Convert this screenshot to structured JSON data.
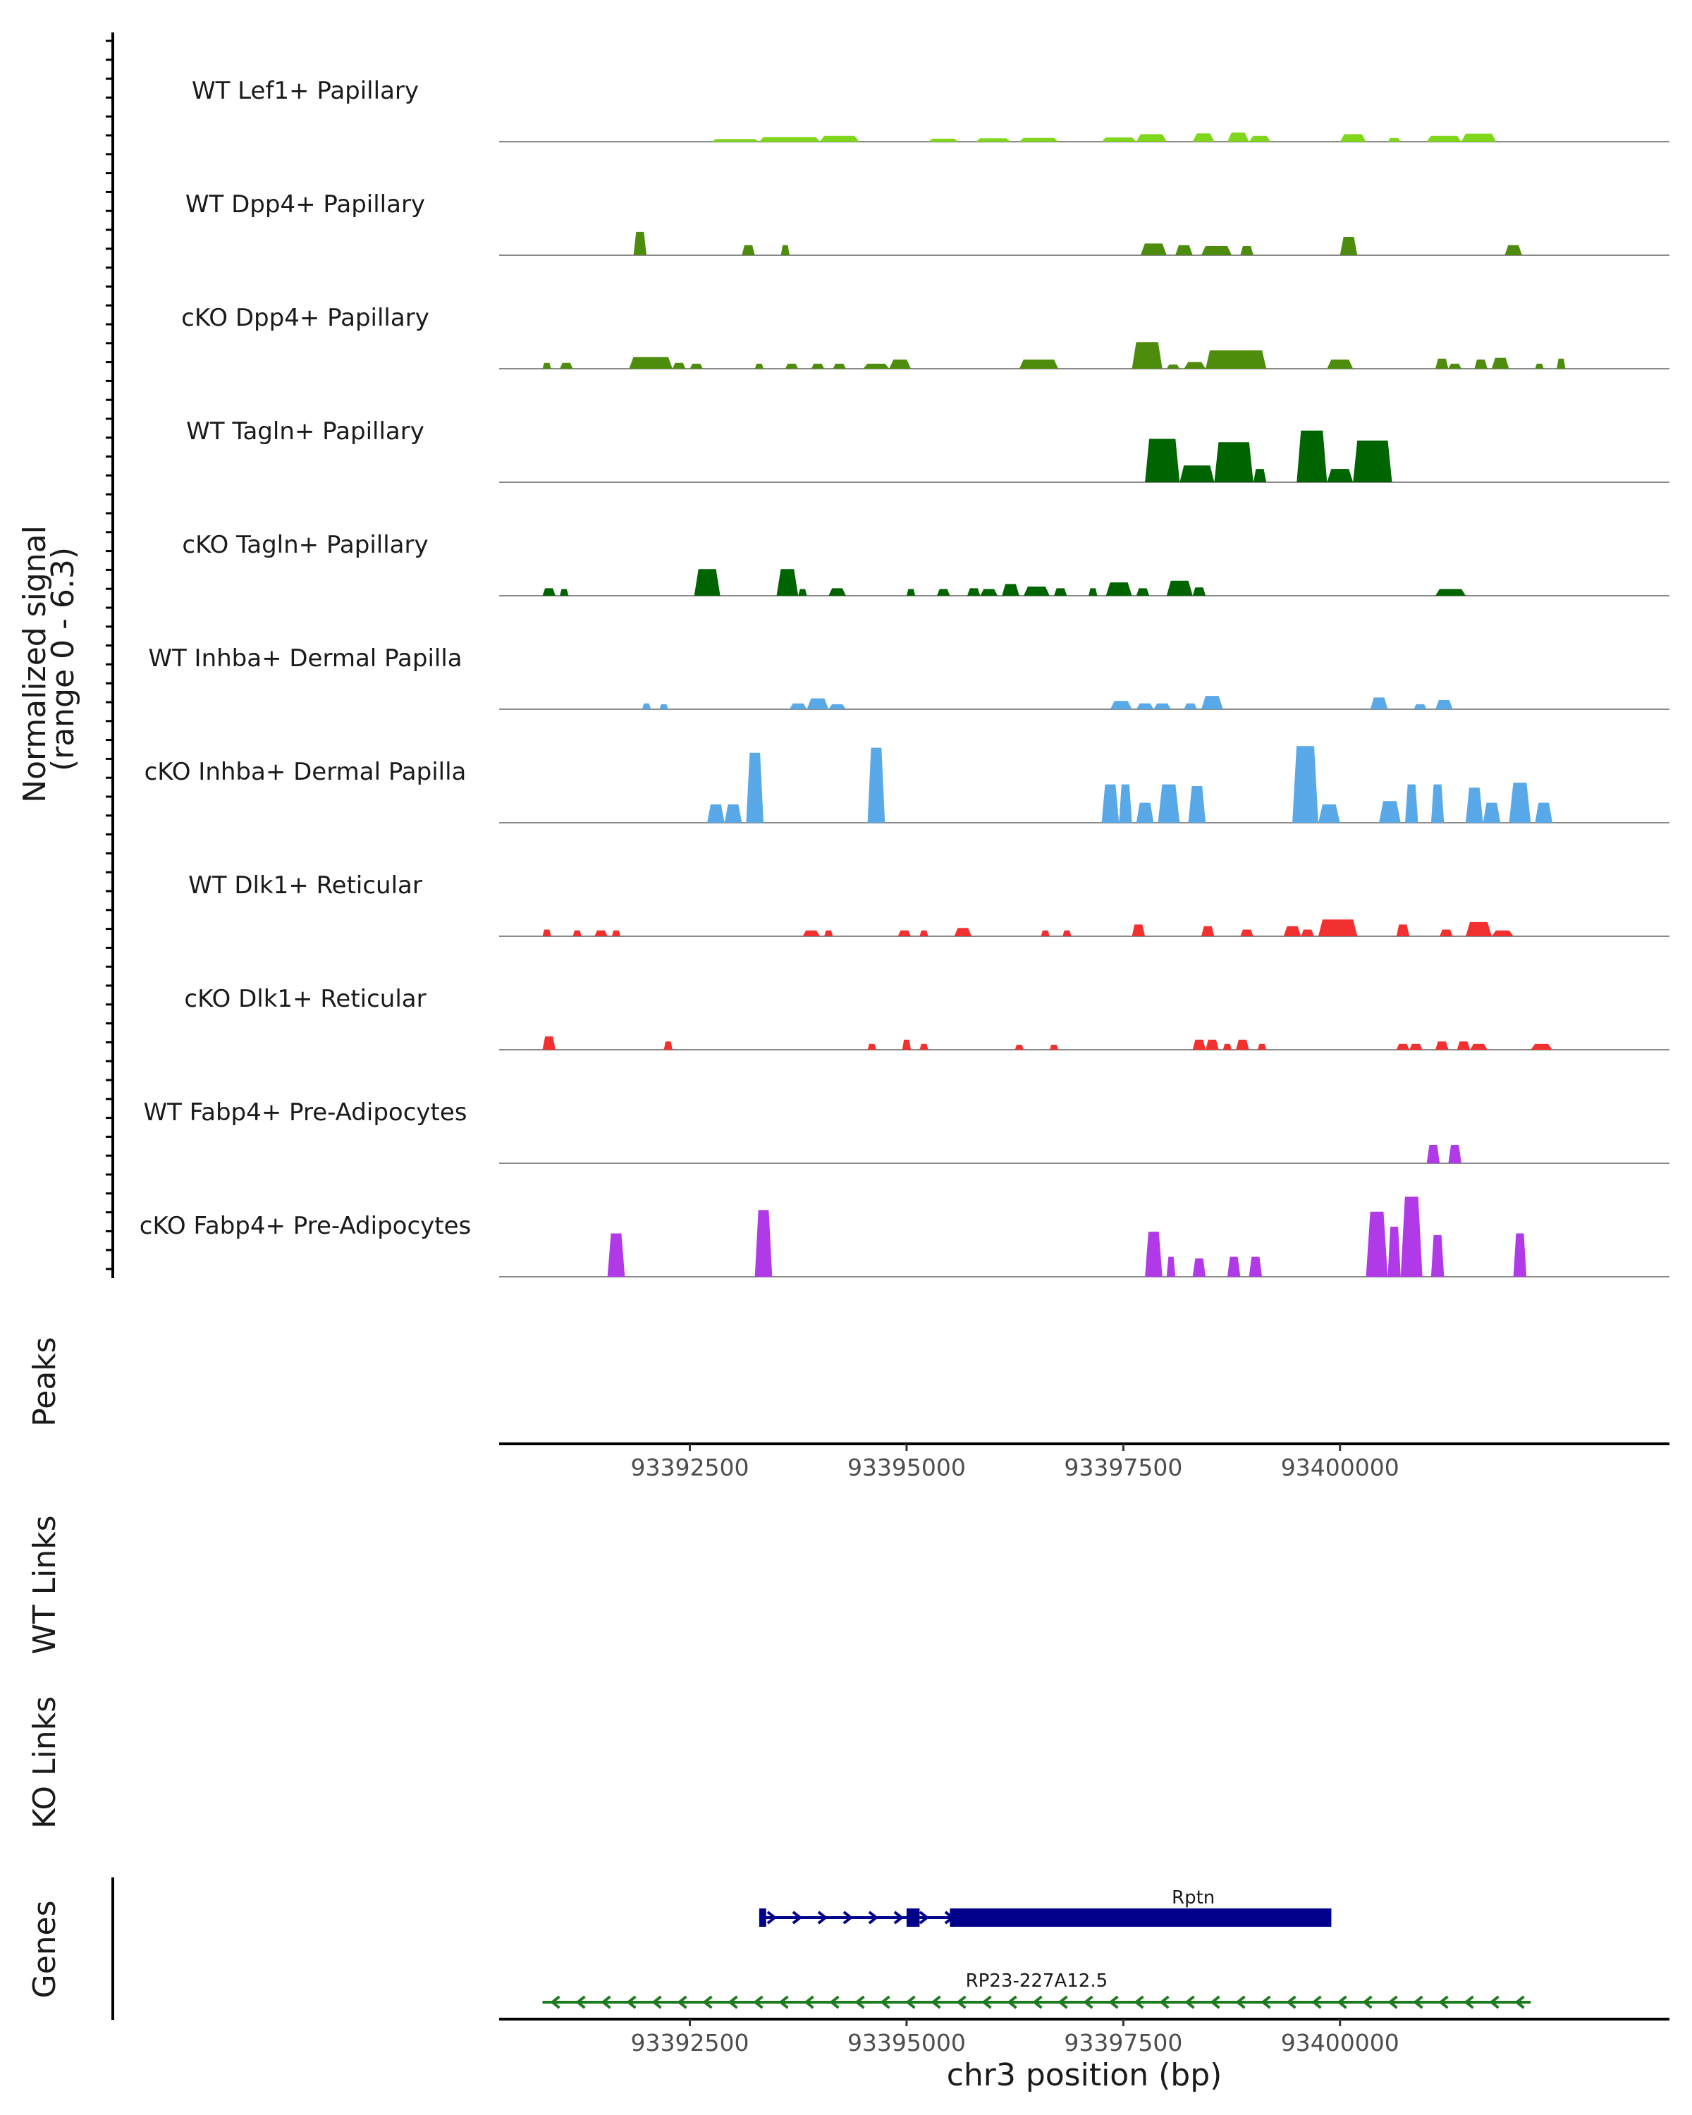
{
  "chart_data": {
    "type": "area",
    "title": "",
    "region": "chr3",
    "xlim": [
      93390300,
      93403800
    ],
    "signal_axis": {
      "label_lines": [
        "Normalized signal",
        "(range 0 - 6.3)"
      ],
      "ylim": [
        0,
        6.3
      ]
    },
    "tracks": [
      {
        "name": "WT Lef1+ Papillary",
        "color": "#7FD61B",
        "peaks": [
          [
            93392750,
            93393300,
            0.16
          ],
          [
            93393300,
            93394000,
            0.28
          ],
          [
            93394000,
            93394450,
            0.35
          ],
          [
            93395250,
            93395600,
            0.18
          ],
          [
            93395800,
            93396200,
            0.2
          ],
          [
            93396300,
            93396750,
            0.23
          ],
          [
            93397250,
            93397650,
            0.26
          ],
          [
            93397650,
            93398000,
            0.45
          ],
          [
            93398300,
            93398550,
            0.5
          ],
          [
            93398700,
            93398950,
            0.55
          ],
          [
            93398950,
            93399200,
            0.35
          ],
          [
            93400000,
            93400300,
            0.45
          ],
          [
            93400550,
            93400700,
            0.22
          ],
          [
            93401000,
            93401400,
            0.35
          ],
          [
            93401400,
            93401800,
            0.48
          ]
        ]
      },
      {
        "name": "WT Dpp4+ Papillary",
        "color": "#4D8C0D",
        "peaks": [
          [
            93391850,
            93392000,
            1.4
          ],
          [
            93393100,
            93393250,
            0.6
          ],
          [
            93393550,
            93393650,
            0.6
          ],
          [
            93397700,
            93398000,
            0.7
          ],
          [
            93398100,
            93398300,
            0.6
          ],
          [
            93398400,
            93398750,
            0.55
          ],
          [
            93398850,
            93399000,
            0.55
          ],
          [
            93400000,
            93400200,
            1.1
          ],
          [
            93401900,
            93402100,
            0.6
          ]
        ]
      },
      {
        "name": "cKO Dpp4+ Papillary",
        "color": "#4D8C0D",
        "peaks": [
          [
            93390800,
            93390900,
            0.35
          ],
          [
            93391000,
            93391150,
            0.35
          ],
          [
            93391800,
            93392300,
            0.7
          ],
          [
            93392300,
            93392450,
            0.35
          ],
          [
            93392500,
            93392650,
            0.3
          ],
          [
            93393250,
            93393350,
            0.3
          ],
          [
            93393600,
            93393750,
            0.3
          ],
          [
            93393900,
            93394050,
            0.3
          ],
          [
            93394150,
            93394300,
            0.3
          ],
          [
            93394500,
            93394800,
            0.3
          ],
          [
            93394800,
            93395050,
            0.55
          ],
          [
            93396300,
            93396750,
            0.55
          ],
          [
            93397600,
            93397950,
            1.6
          ],
          [
            93398000,
            93398150,
            0.25
          ],
          [
            93398200,
            93398450,
            0.4
          ],
          [
            93398450,
            93399150,
            1.1
          ],
          [
            93399850,
            93400150,
            0.55
          ],
          [
            93401100,
            93401250,
            0.6
          ],
          [
            93401250,
            93401400,
            0.3
          ],
          [
            93401550,
            93401700,
            0.55
          ],
          [
            93401750,
            93401950,
            0.65
          ],
          [
            93402250,
            93402350,
            0.3
          ],
          [
            93402500,
            93402600,
            0.6
          ]
        ]
      },
      {
        "name": "WT Tagln+ Papillary",
        "color": "#006400",
        "peaks": [
          [
            93397750,
            93398150,
            2.6
          ],
          [
            93398150,
            93398550,
            1.0
          ],
          [
            93398550,
            93399000,
            2.4
          ],
          [
            93399000,
            93399150,
            0.8
          ],
          [
            93399500,
            93399850,
            3.1
          ],
          [
            93399850,
            93400150,
            0.8
          ],
          [
            93400150,
            93400600,
            2.5
          ]
        ]
      },
      {
        "name": "cKO Tagln+ Papillary",
        "color": "#006400",
        "peaks": [
          [
            93390800,
            93390950,
            0.45
          ],
          [
            93391000,
            93391100,
            0.4
          ],
          [
            93392550,
            93392850,
            1.6
          ],
          [
            93393500,
            93393750,
            1.6
          ],
          [
            93393750,
            93393850,
            0.4
          ],
          [
            93394100,
            93394300,
            0.45
          ],
          [
            93395000,
            93395100,
            0.4
          ],
          [
            93395350,
            93395500,
            0.4
          ],
          [
            93395700,
            93395850,
            0.45
          ],
          [
            93395850,
            93396050,
            0.4
          ],
          [
            93396100,
            93396300,
            0.7
          ],
          [
            93396350,
            93396650,
            0.55
          ],
          [
            93396700,
            93396850,
            0.45
          ],
          [
            93397100,
            93397200,
            0.45
          ],
          [
            93397300,
            93397600,
            0.8
          ],
          [
            93397650,
            93397800,
            0.45
          ],
          [
            93398000,
            93398300,
            0.9
          ],
          [
            93398300,
            93398450,
            0.5
          ],
          [
            93401100,
            93401450,
            0.4
          ]
        ]
      },
      {
        "name": "WT Inhba+ Dermal Papilla",
        "color": "#59A8E8",
        "peaks": [
          [
            93391950,
            93392050,
            0.35
          ],
          [
            93392150,
            93392250,
            0.3
          ],
          [
            93393650,
            93393850,
            0.35
          ],
          [
            93393850,
            93394100,
            0.65
          ],
          [
            93394100,
            93394300,
            0.3
          ],
          [
            93397350,
            93397600,
            0.5
          ],
          [
            93397650,
            93397850,
            0.35
          ],
          [
            93397850,
            93398050,
            0.35
          ],
          [
            93398200,
            93398350,
            0.35
          ],
          [
            93398400,
            93398650,
            0.8
          ],
          [
            93400350,
            93400550,
            0.7
          ],
          [
            93400850,
            93401000,
            0.3
          ],
          [
            93401100,
            93401300,
            0.55
          ]
        ]
      },
      {
        "name": "cKO Inhba+ Dermal Papilla",
        "color": "#59A8E8",
        "peaks": [
          [
            93392700,
            93392900,
            1.1
          ],
          [
            93392900,
            93393100,
            1.1
          ],
          [
            93393150,
            93393350,
            4.2
          ],
          [
            93394550,
            93394750,
            4.5
          ],
          [
            93397250,
            93397450,
            2.3
          ],
          [
            93397450,
            93397600,
            2.3
          ],
          [
            93397650,
            93397850,
            1.2
          ],
          [
            93397900,
            93398150,
            2.3
          ],
          [
            93398250,
            93398450,
            2.2
          ],
          [
            93399450,
            93399750,
            4.6
          ],
          [
            93399750,
            93400000,
            1.1
          ],
          [
            93400450,
            93400700,
            1.3
          ],
          [
            93400750,
            93400900,
            2.3
          ],
          [
            93401050,
            93401200,
            2.3
          ],
          [
            93401450,
            93401650,
            2.1
          ],
          [
            93401650,
            93401850,
            1.2
          ],
          [
            93401950,
            93402200,
            2.4
          ],
          [
            93402250,
            93402450,
            1.2
          ]
        ]
      },
      {
        "name": "WT Dlk1+ Reticular",
        "color": "#F23030",
        "peaks": [
          [
            93390800,
            93390900,
            0.4
          ],
          [
            93391150,
            93391250,
            0.35
          ],
          [
            93391400,
            93391550,
            0.35
          ],
          [
            93391600,
            93391700,
            0.35
          ],
          [
            93393800,
            93394000,
            0.35
          ],
          [
            93394050,
            93394150,
            0.35
          ],
          [
            93394900,
            93395050,
            0.35
          ],
          [
            93395150,
            93395250,
            0.35
          ],
          [
            93395550,
            93395750,
            0.5
          ],
          [
            93396550,
            93396650,
            0.35
          ],
          [
            93396800,
            93396900,
            0.35
          ],
          [
            93397600,
            93397750,
            0.7
          ],
          [
            93398400,
            93398550,
            0.6
          ],
          [
            93398850,
            93399000,
            0.4
          ],
          [
            93399350,
            93399550,
            0.6
          ],
          [
            93399550,
            93399700,
            0.4
          ],
          [
            93399750,
            93400200,
            1.0
          ],
          [
            93400650,
            93400800,
            0.7
          ],
          [
            93401150,
            93401300,
            0.4
          ],
          [
            93401450,
            93401750,
            0.85
          ],
          [
            93401750,
            93402000,
            0.35
          ]
        ]
      },
      {
        "name": "cKO Dlk1+ Reticular",
        "color": "#F23030",
        "peaks": [
          [
            93390800,
            93390950,
            0.8
          ],
          [
            93392200,
            93392300,
            0.5
          ],
          [
            93394550,
            93394650,
            0.35
          ],
          [
            93394950,
            93395050,
            0.6
          ],
          [
            93395150,
            93395250,
            0.35
          ],
          [
            93396250,
            93396350,
            0.3
          ],
          [
            93396650,
            93396750,
            0.3
          ],
          [
            93398300,
            93398450,
            0.6
          ],
          [
            93398450,
            93398600,
            0.6
          ],
          [
            93398650,
            93398750,
            0.35
          ],
          [
            93398800,
            93398950,
            0.6
          ],
          [
            93399050,
            93399150,
            0.35
          ],
          [
            93400650,
            93400800,
            0.35
          ],
          [
            93400800,
            93400950,
            0.35
          ],
          [
            93401100,
            93401250,
            0.5
          ],
          [
            93401350,
            93401500,
            0.5
          ],
          [
            93401500,
            93401700,
            0.35
          ],
          [
            93402200,
            93402450,
            0.35
          ]
        ]
      },
      {
        "name": "WT Fabp4+ Pre-Adipocytes",
        "color": "#B03AE8",
        "peaks": [
          [
            93401000,
            93401150,
            1.1
          ],
          [
            93401250,
            93401400,
            1.1
          ]
        ]
      },
      {
        "name": "cKO Fabp4+ Pre-Adipocytes",
        "color": "#B03AE8",
        "peaks": [
          [
            93391550,
            93391750,
            2.6
          ],
          [
            93393250,
            93393450,
            4.0
          ],
          [
            93397750,
            93397950,
            2.7
          ],
          [
            93398000,
            93398100,
            1.2
          ],
          [
            93398300,
            93398450,
            1.1
          ],
          [
            93398700,
            93398850,
            1.2
          ],
          [
            93398950,
            93399100,
            1.2
          ],
          [
            93400300,
            93400550,
            3.9
          ],
          [
            93400550,
            93400700,
            3.0
          ],
          [
            93400700,
            93400950,
            4.8
          ],
          [
            93401050,
            93401200,
            2.5
          ],
          [
            93402000,
            93402150,
            2.6
          ]
        ]
      }
    ],
    "panels": {
      "peaks_label": "Peaks",
      "wt_links_label": "WT Links",
      "ko_links_label": "KO Links",
      "genes_label": "Genes"
    },
    "x_ticks": [
      93392500,
      93395000,
      93397500,
      93400000
    ],
    "xlabel": "chr3 position (bp)",
    "genes": [
      {
        "name": "Rptn",
        "color": "#00008B",
        "strand": "+",
        "line": [
          93393300,
          93399900
        ],
        "exons": [
          [
            93393300,
            93393380
          ],
          [
            93395000,
            93395150
          ],
          [
            93395500,
            93399900
          ]
        ]
      },
      {
        "name": "RP23-227A12.5",
        "color": "#1E7A1E",
        "strand": "-",
        "line": [
          93390800,
          93402200
        ],
        "exons": []
      }
    ]
  }
}
